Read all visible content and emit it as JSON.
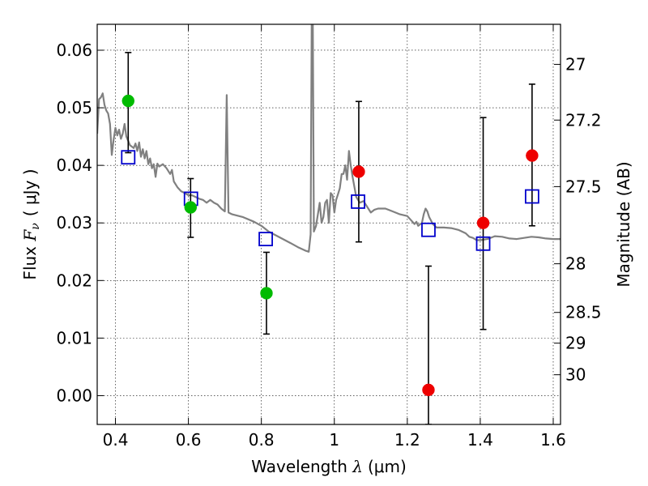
{
  "chart_data": {
    "type": "scatter",
    "xlabel": {
      "pre": "Wavelength ",
      "sym": "λ",
      "unit": "(μm)"
    },
    "ylabel": {
      "pre": "Flux ",
      "sym": "F",
      "sub": "ν",
      "unit": "( μJy )"
    },
    "y2label": "Magnitude (AB)",
    "xlim": [
      0.35,
      1.62
    ],
    "ylim": [
      -0.005,
      0.0645
    ],
    "grid": true,
    "xticks": [
      {
        "v": 0.4,
        "label": "0.4"
      },
      {
        "v": 0.6,
        "label": "0.6"
      },
      {
        "v": 0.8,
        "label": "0.8"
      },
      {
        "v": 1.0,
        "label": "1"
      },
      {
        "v": 1.2,
        "label": "1.2"
      },
      {
        "v": 1.4,
        "label": "1.4"
      },
      {
        "v": 1.6,
        "label": "1.6"
      }
    ],
    "yticks": [
      {
        "v": 0.0,
        "label": "0.00"
      },
      {
        "v": 0.01,
        "label": "0.01"
      },
      {
        "v": 0.02,
        "label": "0.02"
      },
      {
        "v": 0.03,
        "label": "0.03"
      },
      {
        "v": 0.04,
        "label": "0.04"
      },
      {
        "v": 0.05,
        "label": "0.05"
      },
      {
        "v": 0.06,
        "label": "0.06"
      }
    ],
    "y2ticks": [
      {
        "mag": 27,
        "label": "27"
      },
      {
        "mag": 27.2,
        "label": "27.2"
      },
      {
        "mag": 27.5,
        "label": "27.5"
      },
      {
        "mag": 28,
        "label": "28"
      },
      {
        "mag": 28.5,
        "label": "28.5"
      },
      {
        "mag": 29,
        "label": "29"
      },
      {
        "mag": 30,
        "label": "30"
      }
    ],
    "template_sed": {
      "color": "#808080",
      "points": [
        [
          0.35,
          0.0455
        ],
        [
          0.355,
          0.0515
        ],
        [
          0.36,
          0.0518
        ],
        [
          0.365,
          0.0525
        ],
        [
          0.37,
          0.0505
        ],
        [
          0.375,
          0.0495
        ],
        [
          0.38,
          0.049
        ],
        [
          0.385,
          0.0472
        ],
        [
          0.39,
          0.0418
        ],
        [
          0.395,
          0.0445
        ],
        [
          0.4,
          0.0465
        ],
        [
          0.405,
          0.0452
        ],
        [
          0.41,
          0.0462
        ],
        [
          0.415,
          0.0446
        ],
        [
          0.42,
          0.0455
        ],
        [
          0.425,
          0.0472
        ],
        [
          0.43,
          0.045
        ],
        [
          0.44,
          0.0435
        ],
        [
          0.45,
          0.043
        ],
        [
          0.455,
          0.0438
        ],
        [
          0.46,
          0.0425
        ],
        [
          0.465,
          0.044
        ],
        [
          0.47,
          0.0415
        ],
        [
          0.475,
          0.0428
        ],
        [
          0.48,
          0.0412
        ],
        [
          0.485,
          0.0425
        ],
        [
          0.49,
          0.0402
        ],
        [
          0.495,
          0.0412
        ],
        [
          0.5,
          0.0395
        ],
        [
          0.505,
          0.0402
        ],
        [
          0.51,
          0.038
        ],
        [
          0.515,
          0.0403
        ],
        [
          0.52,
          0.0398
        ],
        [
          0.53,
          0.0402
        ],
        [
          0.54,
          0.0395
        ],
        [
          0.55,
          0.0385
        ],
        [
          0.555,
          0.0392
        ],
        [
          0.56,
          0.0372
        ],
        [
          0.57,
          0.0362
        ],
        [
          0.58,
          0.0355
        ],
        [
          0.59,
          0.0352
        ],
        [
          0.6,
          0.0348
        ],
        [
          0.61,
          0.0348
        ],
        [
          0.62,
          0.0345
        ],
        [
          0.63,
          0.0342
        ],
        [
          0.64,
          0.034
        ],
        [
          0.65,
          0.0335
        ],
        [
          0.66,
          0.034
        ],
        [
          0.67,
          0.0335
        ],
        [
          0.68,
          0.0332
        ],
        [
          0.69,
          0.0325
        ],
        [
          0.7,
          0.032
        ],
        [
          0.705,
          0.0522
        ],
        [
          0.71,
          0.0318
        ],
        [
          0.72,
          0.0315
        ],
        [
          0.75,
          0.031
        ],
        [
          0.78,
          0.0302
        ],
        [
          0.8,
          0.0295
        ],
        [
          0.82,
          0.0285
        ],
        [
          0.85,
          0.0275
        ],
        [
          0.88,
          0.0265
        ],
        [
          0.9,
          0.0258
        ],
        [
          0.92,
          0.0252
        ],
        [
          0.93,
          0.025
        ],
        [
          0.935,
          0.028
        ],
        [
          0.938,
          0.0645
        ],
        [
          0.941,
          0.0645
        ],
        [
          0.944,
          0.0285
        ],
        [
          0.95,
          0.0295
        ],
        [
          0.96,
          0.0335
        ],
        [
          0.965,
          0.03
        ],
        [
          0.97,
          0.031
        ],
        [
          0.975,
          0.0335
        ],
        [
          0.98,
          0.034
        ],
        [
          0.985,
          0.03
        ],
        [
          0.99,
          0.0352
        ],
        [
          0.995,
          0.0348
        ],
        [
          1.0,
          0.0318
        ],
        [
          1.005,
          0.034
        ],
        [
          1.01,
          0.035
        ],
        [
          1.015,
          0.036
        ],
        [
          1.02,
          0.0385
        ],
        [
          1.025,
          0.0385
        ],
        [
          1.03,
          0.04
        ],
        [
          1.035,
          0.0375
        ],
        [
          1.04,
          0.0425
        ],
        [
          1.045,
          0.04
        ],
        [
          1.05,
          0.038
        ],
        [
          1.06,
          0.0345
        ],
        [
          1.07,
          0.0335
        ],
        [
          1.08,
          0.0338
        ],
        [
          1.09,
          0.0328
        ],
        [
          1.1,
          0.0318
        ],
        [
          1.11,
          0.0323
        ],
        [
          1.12,
          0.0325
        ],
        [
          1.14,
          0.0325
        ],
        [
          1.16,
          0.032
        ],
        [
          1.18,
          0.0315
        ],
        [
          1.2,
          0.0312
        ],
        [
          1.21,
          0.0305
        ],
        [
          1.22,
          0.0298
        ],
        [
          1.225,
          0.0302
        ],
        [
          1.23,
          0.0295
        ],
        [
          1.24,
          0.03
        ],
        [
          1.245,
          0.0315
        ],
        [
          1.25,
          0.0325
        ],
        [
          1.255,
          0.032
        ],
        [
          1.26,
          0.031
        ],
        [
          1.27,
          0.0298
        ],
        [
          1.28,
          0.0292
        ],
        [
          1.3,
          0.0292
        ],
        [
          1.32,
          0.0291
        ],
        [
          1.34,
          0.0288
        ],
        [
          1.36,
          0.0282
        ],
        [
          1.37,
          0.0276
        ],
        [
          1.38,
          0.0274
        ],
        [
          1.39,
          0.027
        ],
        [
          1.4,
          0.027
        ],
        [
          1.42,
          0.0272
        ],
        [
          1.44,
          0.0277
        ],
        [
          1.46,
          0.0276
        ],
        [
          1.48,
          0.0273
        ],
        [
          1.5,
          0.0272
        ],
        [
          1.52,
          0.0274
        ],
        [
          1.54,
          0.0276
        ],
        [
          1.56,
          0.0275
        ],
        [
          1.58,
          0.0273
        ],
        [
          1.6,
          0.0272
        ],
        [
          1.62,
          0.0272
        ]
      ]
    },
    "model_points": {
      "color": "#0000cc",
      "points": [
        [
          0.435,
          0.0414
        ],
        [
          0.607,
          0.0342
        ],
        [
          0.812,
          0.0272
        ],
        [
          1.065,
          0.0337
        ],
        [
          1.258,
          0.0288
        ],
        [
          1.408,
          0.0264
        ],
        [
          1.542,
          0.0346
        ]
      ]
    },
    "observed": [
      {
        "x": 0.435,
        "y": 0.0512,
        "lo": 0.0422,
        "hi": 0.0596,
        "color": "#00bb00"
      },
      {
        "x": 0.606,
        "y": 0.0327,
        "lo": 0.0275,
        "hi": 0.0377,
        "color": "#00bb00"
      },
      {
        "x": 0.814,
        "y": 0.0178,
        "lo": 0.0107,
        "hi": 0.0249,
        "color": "#00bb00"
      },
      {
        "x": 1.067,
        "y": 0.0389,
        "lo": 0.0267,
        "hi": 0.0511,
        "color": "#ee0000"
      },
      {
        "x": 1.258,
        "y": 0.001,
        "lo": -0.005,
        "hi": 0.0225,
        "color": "#ee0000"
      },
      {
        "x": 1.408,
        "y": 0.03,
        "lo": 0.0115,
        "hi": 0.0483,
        "color": "#ee0000"
      },
      {
        "x": 1.542,
        "y": 0.0417,
        "lo": 0.0295,
        "hi": 0.0541,
        "color": "#ee0000"
      }
    ]
  }
}
